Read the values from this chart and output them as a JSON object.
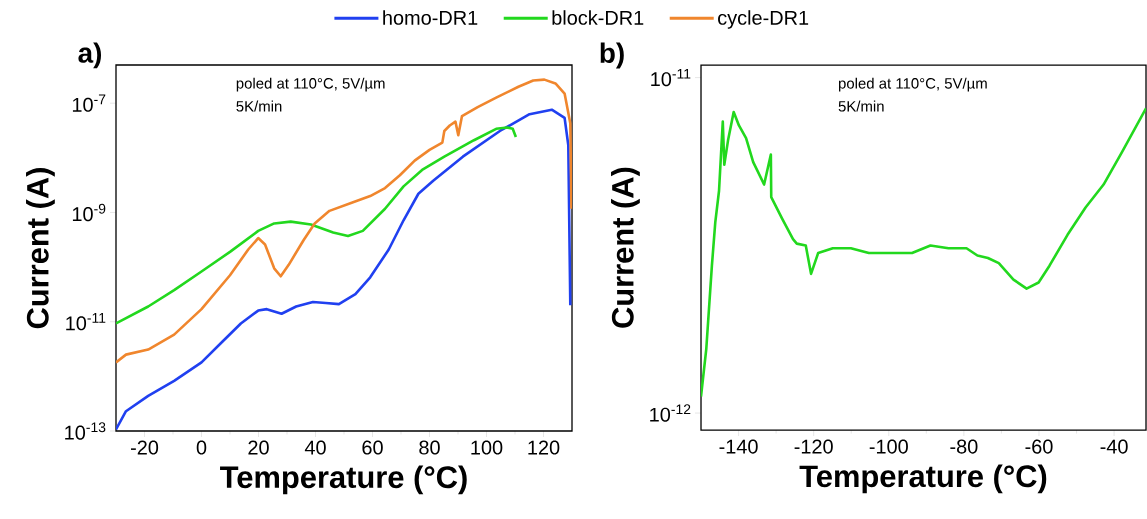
{
  "chart_data": [
    {
      "type": "line",
      "title": "a)",
      "xlabel": "Temperature (°C)",
      "ylabel": "Current (A)",
      "log": "y",
      "legend": "top",
      "marker": "none",
      "annotations": [
        "poled at 110°C, 5V/µm",
        "5K/min"
      ],
      "xlim": [
        -30,
        130
      ],
      "xticks": [
        -20,
        0,
        20,
        40,
        60,
        80,
        100,
        120
      ],
      "ylim": [
        1e-13,
        5e-07
      ],
      "yticks": [
        {
          "value": 1e-13,
          "label": "10$^{-13}$"
        },
        {
          "value": 1e-11,
          "label": "10$^{-11}$"
        },
        {
          "value": 1e-09,
          "label": "10$^{-9}$"
        },
        {
          "value": 1e-07,
          "label": "10$^{-7}$"
        }
      ],
      "series": [
        {
          "name": "homo-DR1",
          "color": "#2040f0",
          "x": [
            -30,
            -26.5,
            -18.7,
            -9.6,
            0,
            7.3,
            13.8,
            19.9,
            22.9,
            28.1,
            33.2,
            39.1,
            43.6,
            48.2,
            54,
            59.2,
            65.7,
            70.9,
            76.1,
            81.3,
            91.7,
            104.7,
            115.1,
            122.9,
            127.4,
            128.7,
            129.4
          ],
          "values": [
            1.07e-13,
            2.3e-13,
            4.4e-13,
            8.3e-13,
            1.8e-12,
            4.3e-12,
            9.3e-12,
            1.6e-11,
            1.7e-11,
            1.4e-11,
            1.9e-11,
            2.3e-11,
            2.2e-11,
            2.1e-11,
            3.2e-11,
            6.5e-11,
            2.1e-10,
            7.2e-10,
            2.2e-09,
            3.8e-09,
            1.05e-08,
            3.1e-08,
            6.3e-08,
            7.6e-08,
            5.4e-08,
            1.7e-08,
            2e-11
          ]
        },
        {
          "name": "block-DR1",
          "color": "#22d81e",
          "x": [
            -30,
            -18.7,
            -9.6,
            0,
            10,
            19.9,
            25.5,
            31.3,
            38.4,
            46.2,
            51.4,
            56.6,
            64.4,
            70.9,
            77.4,
            85.2,
            95.6,
            103.4,
            107.3,
            109.2,
            110.3
          ],
          "values": [
            9.3e-12,
            1.9e-11,
            3.8e-11,
            8.3e-11,
            1.9e-10,
            4.6e-10,
            6.3e-10,
            6.8e-10,
            6e-10,
            4.3e-10,
            3.7e-10,
            4.6e-10,
            1.17e-09,
            3e-09,
            6e-09,
            1.05e-08,
            2.1e-08,
            3.4e-08,
            3.6e-08,
            3.4e-08,
            2.4e-08
          ]
        },
        {
          "name": "cycle-DR1",
          "color": "#f0862d",
          "x": [
            -30,
            -26.5,
            -18.7,
            -9.6,
            0,
            10,
            16.4,
            19.9,
            22.3,
            25.5,
            27.8,
            30.6,
            35.8,
            39.7,
            44.9,
            52.7,
            59.2,
            64.4,
            69.6,
            74.8,
            80,
            84.5,
            85.2,
            87.1,
            89.1,
            90.1,
            91.4,
            96.9,
            103.4,
            111.2,
            116.4,
            120.3,
            124.2,
            127.4,
            129.4,
            129.8
          ],
          "values": [
            1.8e-12,
            2.5e-12,
            3.1e-12,
            5.8e-12,
            1.7e-11,
            7.1e-11,
            2.1e-10,
            3.4e-10,
            2.6e-10,
            9.5e-11,
            6.8e-11,
            1.1e-10,
            3.1e-10,
            6.3e-10,
            1.07e-09,
            1.5e-09,
            2e-09,
            2.8e-09,
            4.8e-09,
            8.9e-09,
            1.4e-08,
            1.9e-08,
            3.1e-08,
            3.9e-08,
            4.6e-08,
            2.6e-08,
            5.8e-08,
            8.5e-08,
            1.26e-07,
            2e-07,
            2.6e-07,
            2.7e-07,
            2.3e-07,
            1.5e-07,
            4.3e-08,
            1.17e-09
          ]
        }
      ]
    },
    {
      "type": "line",
      "title": "b)",
      "xlabel": "Temperature (°C)",
      "ylabel": "Current (A)",
      "log": "y",
      "marker": "none",
      "annotations": [
        "poled at 110°C, 5V/µm",
        "5K/min"
      ],
      "xlim": [
        -150,
        -31.5
      ],
      "xticks": [
        -140,
        -120,
        -100,
        -80,
        -60,
        -40
      ],
      "ylim": [
        8.9e-13,
        1.09e-11
      ],
      "yticks": [
        {
          "value": 1e-12,
          "label": "10$^{-12}$"
        },
        {
          "value": 1e-11,
          "label": "10$^{-11}$"
        }
      ],
      "series": [
        {
          "color": "#22d81e",
          "x": [
            -150,
            -148.6,
            -147.1,
            -146.2,
            -145.2,
            -144.2,
            -143.8,
            -142.8,
            -141.3,
            -139.9,
            -138,
            -136.1,
            -133.2,
            -131.4,
            -131.3,
            -128.4,
            -125.5,
            -124.5,
            -122.1,
            -120.7,
            -118.8,
            -114.9,
            -110.1,
            -105.3,
            -99.5,
            -93.8,
            -88.9,
            -84.1,
            -79.3,
            -76.4,
            -73.6,
            -70.7,
            -66.8,
            -63.3,
            -60.1,
            -57.2,
            -52.4,
            -47.6,
            -42.8,
            -37.9,
            -31.5
          ],
          "values": [
            1.12e-12,
            1.55e-12,
            2.75e-12,
            3.7e-12,
            4.6e-12,
            7.4e-12,
            5.5e-12,
            6.5e-12,
            7.9e-12,
            7.2e-12,
            6.6e-12,
            5.6e-12,
            4.8e-12,
            5.9e-12,
            4.4e-12,
            3.8e-12,
            3.3e-12,
            3.2e-12,
            3.16e-12,
            2.6e-12,
            3e-12,
            3.1e-12,
            3.1e-12,
            3e-12,
            3e-12,
            3e-12,
            3.16e-12,
            3.1e-12,
            3.1e-12,
            2.95e-12,
            2.9e-12,
            2.8e-12,
            2.5e-12,
            2.35e-12,
            2.45e-12,
            2.75e-12,
            3.4e-12,
            4.1e-12,
            4.8e-12,
            6e-12,
            8.1e-12
          ]
        }
      ]
    }
  ]
}
